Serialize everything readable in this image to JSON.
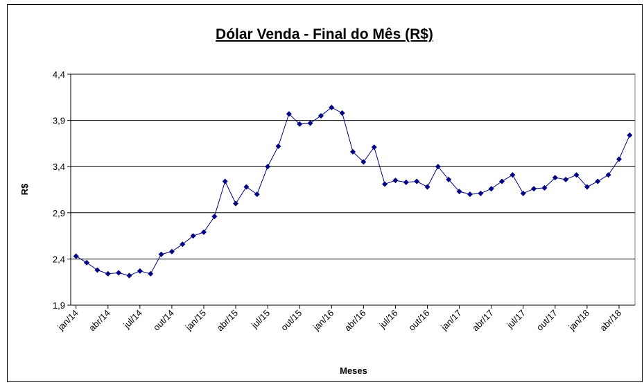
{
  "chart_data": {
    "type": "line",
    "title": "Dólar Venda - Final do Mês (R$)",
    "x_label": "Meses",
    "y_label": "R$",
    "categories": [
      "jan/14",
      null,
      null,
      "abr/14",
      null,
      null,
      "jul/14",
      null,
      null,
      "out/14",
      null,
      null,
      "jan/15",
      null,
      null,
      "abr/15",
      null,
      null,
      "jul/15",
      null,
      null,
      "out/15",
      null,
      null,
      "jan/16",
      null,
      null,
      "abr/16",
      null,
      null,
      "jul/16",
      null,
      null,
      "out/16",
      null,
      null,
      "jan/17",
      null,
      null,
      "abr/17",
      null,
      null,
      "jul/17",
      null,
      null,
      "out/17",
      null,
      null,
      "jan/18",
      null,
      null,
      "abr/18",
      null
    ],
    "series": [
      {
        "color": "#000080",
        "values": [
          2.43,
          2.36,
          2.28,
          2.24,
          2.25,
          2.22,
          2.27,
          2.24,
          2.45,
          2.48,
          2.56,
          2.65,
          2.69,
          2.86,
          3.24,
          3.0,
          3.18,
          3.1,
          3.4,
          3.62,
          3.97,
          3.86,
          3.87,
          3.95,
          4.04,
          3.98,
          3.56,
          3.45,
          3.61,
          3.21,
          3.25,
          3.23,
          3.24,
          3.18,
          3.4,
          3.26,
          3.13,
          3.1,
          3.11,
          3.16,
          3.24,
          3.31,
          3.11,
          3.16,
          3.17,
          3.28,
          3.26,
          3.31,
          3.18,
          3.24,
          3.31,
          3.48,
          3.74
        ]
      }
    ],
    "ylim": [
      1.9,
      4.4
    ],
    "yticks": [
      {
        "value": 1.9,
        "label": "1,9"
      },
      {
        "value": 2.4,
        "label": "2,4"
      },
      {
        "value": 2.9,
        "label": "2,9"
      },
      {
        "value": 3.4,
        "label": "3,4"
      },
      {
        "value": 3.9,
        "label": "3,9"
      },
      {
        "value": 4.4,
        "label": "4,4"
      }
    ],
    "grid": true
  }
}
